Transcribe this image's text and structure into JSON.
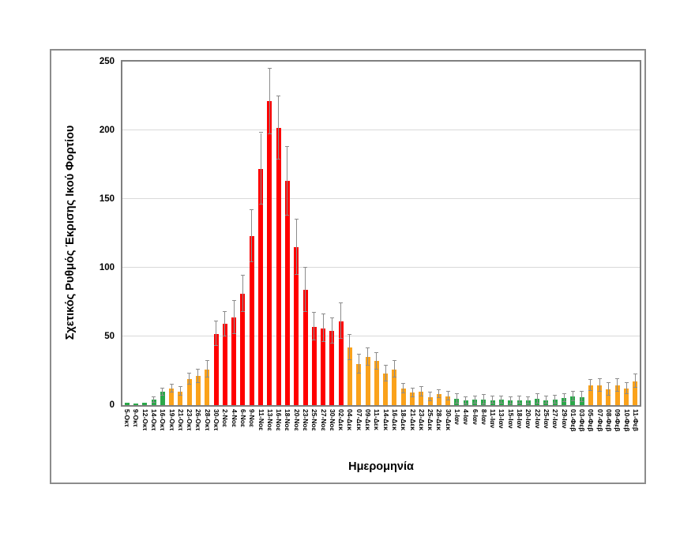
{
  "figure": {
    "y_axis_title": "Σχετικός Ρυθμός Έκρισης Ικού Φορτίου",
    "x_axis_title": "Ημερομηνία"
  },
  "chart_data": {
    "type": "bar",
    "title": "",
    "xlabel": "Ημερομηνία",
    "ylabel": "Σχετικός Ρυθμός Έκρισης Ικού Φορτίου",
    "ylim": [
      0,
      250
    ],
    "yticks": [
      0,
      50,
      100,
      150,
      200,
      250
    ],
    "grid": "horizontal",
    "legend": "none",
    "categories": [
      "5-Οκτ",
      "9-Οκτ",
      "12-Οκτ",
      "14-Οκτ",
      "16-Οκτ",
      "19-Οκτ",
      "21-Οκτ",
      "23-Οκτ",
      "26-Οκτ",
      "28-Οκτ",
      "30-Οκτ",
      "2-Νοε",
      "4-Νοε",
      "6-Νοε",
      "9-Νοε",
      "11-Νοε",
      "13-Νοε",
      "16-Νοε",
      "18-Νοε",
      "20-Νοε",
      "23-Νοε",
      "25-Νοε",
      "27-Νοε",
      "30-Νοε",
      "02-Δεκ",
      "04-Δεκ",
      "07-Δεκ",
      "09-Δεκ",
      "11-Δεκ",
      "14-Δεκ",
      "16-Δεκ",
      "18-Δεκ",
      "21-Δεκ",
      "23-Δεκ",
      "25-Δεκ",
      "28-Δεκ",
      "30-Δεκ",
      "1-Ιαν",
      "4-Ιαν",
      "6-Ιαν",
      "8-Ιαν",
      "11-Ιαν",
      "13-Ιαν",
      "15-Ιαν",
      "18-Ιαν",
      "20-Ιαν",
      "22-Ιαν",
      "25-Ιαν",
      "27-Ιαν",
      "29-Ιαν",
      "01-Φεβ",
      "03-Φεβ",
      "05-Φεβ",
      "07-Φεβ",
      "08-Φεβ",
      "09-Φεβ",
      "10-Φεβ",
      "11-Φεβ"
    ],
    "values": [
      1.5,
      1,
      1.5,
      4,
      9.5,
      12,
      10,
      19,
      21,
      26,
      52,
      59,
      64,
      81,
      123,
      172,
      221,
      202,
      163,
      115,
      84,
      57,
      56,
      54,
      61,
      42,
      30,
      35,
      32,
      23,
      26,
      12,
      9,
      10,
      6,
      8,
      6.5,
      4.5,
      3.2,
      3.8,
      4.2,
      3.6,
      3.8,
      3.2,
      3.6,
      3.2,
      4.7,
      3.6,
      4,
      5.3,
      6.5,
      6,
      14.5,
      14.5,
      11.5,
      14.5,
      12,
      17.5
    ],
    "error_bars": [
      0,
      0,
      0,
      2,
      2.5,
      3,
      3,
      4,
      5,
      6,
      9,
      9,
      12,
      13,
      19,
      26,
      24,
      23,
      25,
      20,
      16,
      10,
      10,
      9,
      13,
      9,
      7,
      6.5,
      6,
      5.5,
      6,
      3.5,
      3,
      3.5,
      3,
      3,
      3,
      3.5,
      2.5,
      2.5,
      3.5,
      2.5,
      2.5,
      2.5,
      2.5,
      2.5,
      3.5,
      2.5,
      3,
      3,
      3.5,
      3.5,
      4,
      4.5,
      4.5,
      4.5,
      4,
      5
    ],
    "bar_colors": [
      "green",
      "green",
      "green",
      "green",
      "green",
      "orange",
      "orange",
      "orange",
      "orange",
      "orange",
      "red",
      "red",
      "red",
      "red",
      "red",
      "red",
      "red",
      "red",
      "red",
      "red",
      "red",
      "red",
      "red",
      "red",
      "red",
      "orange",
      "orange",
      "orange",
      "orange",
      "orange",
      "orange",
      "orange",
      "orange",
      "orange",
      "orange",
      "orange",
      "orange",
      "green",
      "green",
      "green",
      "green",
      "green",
      "green",
      "green",
      "green",
      "green",
      "green",
      "green",
      "green",
      "green",
      "green",
      "green",
      "orange",
      "orange",
      "orange",
      "orange",
      "orange",
      "orange"
    ],
    "colors": {
      "green": "#2ba84a",
      "orange": "#faa21b",
      "red": "#ff0000",
      "error": "#8c8c8c",
      "gridline": "#d9d9d9"
    }
  }
}
